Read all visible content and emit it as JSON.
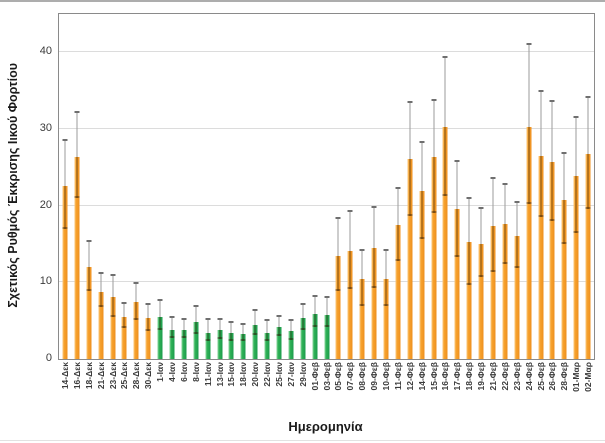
{
  "page": {
    "background": "#ffffff"
  },
  "chart_data": {
    "type": "bar",
    "title": "",
    "xlabel": "Ημερομηνία",
    "ylabel": "Σχετικός Ρυθμός Έκκρισης Ιικού Φορτίου",
    "ylim": [
      0,
      45
    ],
    "yticks": [
      0,
      10,
      20,
      30,
      40
    ],
    "grid": true,
    "legend": false,
    "categories": [
      "14-Δεκ",
      "16-Δεκ",
      "18-Δεκ",
      "21-Δεκ",
      "23-Δεκ",
      "25-Δεκ",
      "28-Δεκ",
      "30-Δεκ",
      "1-Ιαν",
      "4-Ιαν",
      "6-Ιαν",
      "8-Ιαν",
      "11-Ιαν",
      "13-Ιαν",
      "15-Ιαν",
      "18-Ιαν",
      "20-Ιαν",
      "22-Ιαν",
      "25-Ιαν",
      "27-Ιαν",
      "29-Ιαν",
      "01-Φεβ",
      "03-Φεβ",
      "05-Φεβ",
      "07-Φεβ",
      "08-Φεβ",
      "09-Φεβ",
      "10-Φεβ",
      "11-Φεβ",
      "12-Φεβ",
      "14-Φεβ",
      "15-Φεβ",
      "16-Φεβ",
      "17-Φεβ",
      "18-Φεβ",
      "19-Φεβ",
      "21-Φεβ",
      "22-Φεβ",
      "23-Φεβ",
      "24-Φεβ",
      "25-Φεβ",
      "26-Φεβ",
      "28-Φεβ",
      "01-Μαρ",
      "02-Μαρ"
    ],
    "series": [
      {
        "name": "Σχετικός Ρυθμός Έκκρισης Ιικού Φορτίου",
        "values": [
          22.6,
          26.3,
          12.0,
          8.8,
          8.1,
          5.5,
          7.4,
          5.3,
          5.5,
          3.8,
          3.8,
          4.8,
          3.4,
          3.8,
          3.4,
          3.3,
          4.4,
          3.4,
          4.2,
          3.6,
          5.3,
          5.9,
          5.8,
          13.4,
          14.1,
          10.5,
          14.5,
          10.5,
          17.5,
          26.1,
          21.9,
          26.3,
          30.2,
          19.6,
          15.2,
          15.0,
          17.4,
          17.6,
          16.1,
          30.2,
          26.5,
          25.7,
          20.7,
          23.9,
          26.7
        ],
        "err_high": [
          28.4,
          32.1,
          15.2,
          11.1,
          10.8,
          7.2,
          9.8,
          7.0,
          7.6,
          5.3,
          5.1,
          6.8,
          5.1,
          5.1,
          4.7,
          4.5,
          6.2,
          4.9,
          5.5,
          4.9,
          7.0,
          8.1,
          8.0,
          18.2,
          19.2,
          14.1,
          19.7,
          14.1,
          22.2,
          33.4,
          28.2,
          33.7,
          39.3,
          25.7,
          20.9,
          19.6,
          23.5,
          22.7,
          20.3,
          40.9,
          34.8,
          33.5,
          26.7,
          31.4,
          34.1
        ],
        "err_low": [
          17.0,
          21.0,
          8.9,
          6.8,
          5.5,
          4.0,
          5.1,
          3.6,
          3.8,
          2.7,
          2.7,
          3.3,
          2.3,
          2.6,
          2.4,
          2.3,
          3.1,
          2.3,
          3.0,
          2.5,
          3.8,
          4.2,
          4.2,
          8.9,
          9.1,
          6.9,
          9.3,
          6.9,
          12.8,
          18.7,
          15.6,
          19.1,
          21.3,
          13.3,
          9.6,
          10.7,
          11.3,
          12.4,
          11.9,
          20.2,
          18.5,
          18.0,
          15.0,
          16.5,
          19.6
        ]
      }
    ],
    "bar_groups": [
      "orange",
      "orange",
      "orange",
      "orange",
      "orange",
      "orange",
      "orange",
      "orange",
      "green",
      "green",
      "green",
      "green",
      "green",
      "green",
      "green",
      "green",
      "green",
      "green",
      "green",
      "green",
      "green",
      "green",
      "green",
      "orange",
      "orange",
      "orange",
      "orange",
      "orange",
      "orange",
      "orange",
      "orange",
      "orange",
      "orange",
      "orange",
      "orange",
      "orange",
      "orange",
      "orange",
      "orange",
      "orange",
      "orange",
      "orange",
      "orange",
      "orange",
      "orange"
    ],
    "group_colors": {
      "orange": "#F6A22D",
      "green": "#2FB257"
    }
  },
  "style": {
    "orange_light": "#FBC97E",
    "orange_dark": "#EE8F1F",
    "green_light": "#8ED6A0",
    "green_dark": "#1C9B4B",
    "error_line_color": "#9B9B9B",
    "error_cap_color": "#6F6F6F",
    "grid_color": "#DCDCDC",
    "plot_border_color": "#8A8A8A",
    "tick_text_color": "#3B3B3B",
    "title_text_color": "#1A1A1A"
  }
}
